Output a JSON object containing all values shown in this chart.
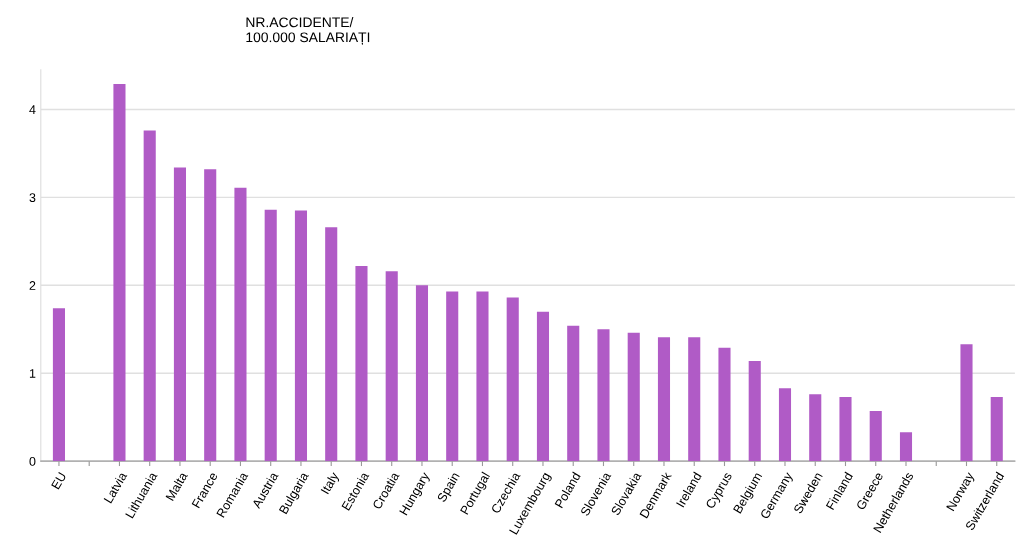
{
  "chart_data": {
    "type": "bar",
    "title": "NR.ACCIDENTE/\n100.000 SALARIAȚI",
    "categories": [
      "EU",
      null,
      "Latvia",
      "Lithuania",
      "Malta",
      "France",
      "Romania",
      "Austria",
      "Bulgaria",
      "Italy",
      "Estonia",
      "Croatia",
      "Hungary",
      "Spain",
      "Portugal",
      "Czechia",
      "Luxembourg",
      "Poland",
      "Slovenia",
      "Slovakia",
      "Denmark",
      "Ireland",
      "Cyprus",
      "Belgium",
      "Germany",
      "Sweden",
      "Finland",
      "Greece",
      "Netherlands",
      null,
      "Norway",
      "Switzerland"
    ],
    "values": [
      1.74,
      null,
      4.29,
      3.76,
      3.34,
      3.32,
      3.11,
      2.86,
      2.85,
      2.66,
      2.22,
      2.16,
      2.0,
      1.93,
      1.93,
      1.86,
      1.7,
      1.54,
      1.5,
      1.46,
      1.41,
      1.41,
      1.29,
      1.14,
      0.83,
      0.76,
      0.73,
      0.57,
      0.33,
      null,
      1.33,
      0.73
    ],
    "color": "#b05bc6",
    "ylim": [
      0,
      4.45
    ],
    "yticks": [
      0,
      1,
      2,
      3,
      4
    ],
    "grid": "y"
  }
}
